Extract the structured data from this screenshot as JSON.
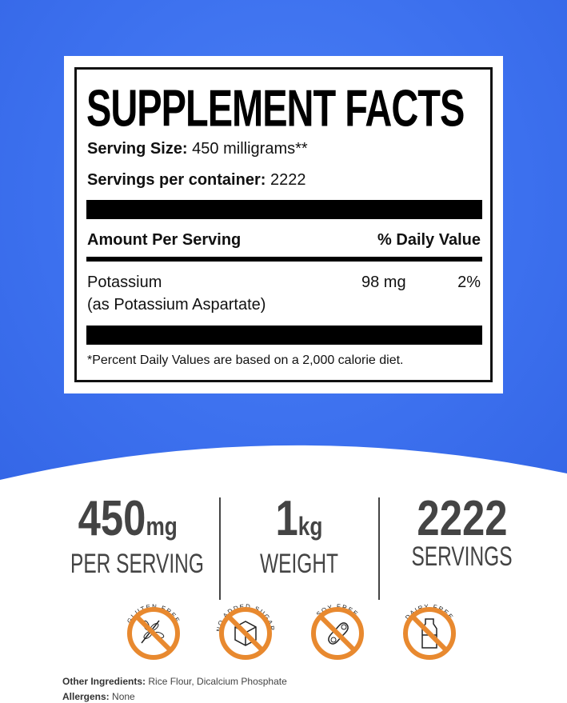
{
  "label": {
    "title": "SUPPLEMENT FACTS",
    "serving_size_label": "Serving Size:",
    "serving_size_value": "450 milligrams**",
    "servings_label": "Servings per container:",
    "servings_value": "2222",
    "amount_header": "Amount Per Serving",
    "dv_header": "% Daily Value",
    "nutrient_name": "Potassium",
    "nutrient_source": "(as Potassium Aspartate)",
    "nutrient_amount": "98 mg",
    "nutrient_dv": "2%",
    "footnote": "*Percent Daily Values are based on a 2,000 calorie diet."
  },
  "stats": [
    {
      "value": "450",
      "unit": "mg",
      "label": "PER SERVING"
    },
    {
      "value": "1",
      "unit": "kg",
      "label": "WEIGHT"
    },
    {
      "value": "2222",
      "unit": "",
      "label": "SERVINGS"
    }
  ],
  "badges": [
    {
      "text": "GLUTEN FREE",
      "icon": "wheat-icon"
    },
    {
      "text": "NO ADDED SUGAR",
      "icon": "sugar-cube-icon"
    },
    {
      "text": "SOY FREE",
      "icon": "soybean-icon"
    },
    {
      "text": "DAIRY FREE",
      "icon": "milk-bottle-icon"
    }
  ],
  "ingredients": {
    "other_label": "Other Ingredients:",
    "other_value": "Rice Flour, Dicalcium Phosphate",
    "allergens_label": "Allergens:",
    "allergens_value": "None"
  },
  "colors": {
    "background": "#3c70ee",
    "badge": "#e8892f",
    "stat_text": "#444444"
  }
}
